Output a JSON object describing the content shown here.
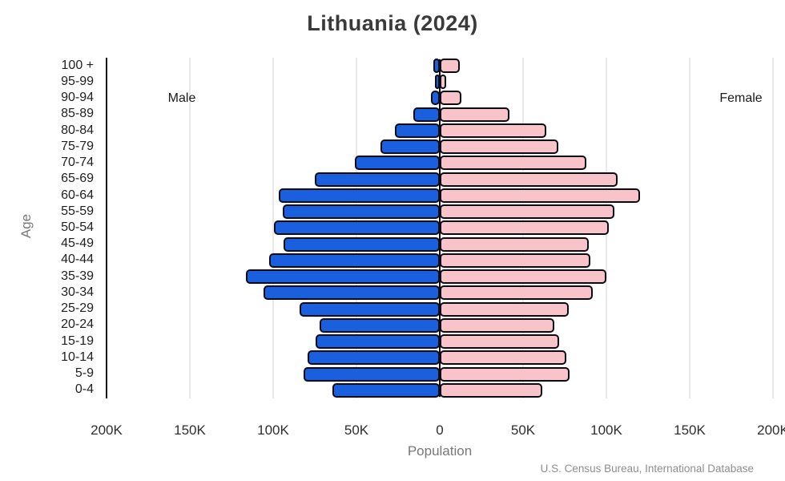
{
  "chart": {
    "title": "Lithuania (2024)",
    "male_annotation": "Male",
    "female_annotation": "Female",
    "xlabel": "Population",
    "ylabel": "Age",
    "source": "U.S. Census Bureau, International Database",
    "x_tick_labels": [
      "200K",
      "150K",
      "100K",
      "50K",
      "0",
      "50K",
      "100K",
      "150K",
      "200K"
    ],
    "colors": {
      "male_bar": "#1a5fdd",
      "female_bar": "#f8c3c9",
      "bar_outline": "#0b0b14",
      "gridline": "#e9e9e9",
      "axis_line": "#111111",
      "title_text": "#3a3a3a",
      "muted_text": "#787878",
      "source_text": "#8e8e8e"
    }
  },
  "chart_data": {
    "type": "bar",
    "subtype": "population-pyramid",
    "title": "Lithuania (2024)",
    "xlabel": "Population",
    "ylabel": "Age",
    "unit": "thousands of people",
    "xlim_each_side_thousands": [
      0,
      200
    ],
    "x_tick_step_thousands": 50,
    "grid": true,
    "legend": "Male left (blue), Female right (pink)",
    "categories_top_to_bottom": [
      "100 +",
      "95-99",
      "90-94",
      "85-89",
      "80-84",
      "75-79",
      "70-74",
      "65-69",
      "60-64",
      "55-59",
      "50-54",
      "45-49",
      "40-44",
      "35-39",
      "30-34",
      "25-29",
      "20-24",
      "15-19",
      "10-14",
      "5-9",
      "0-4"
    ],
    "series": [
      {
        "name": "Male",
        "side": "left",
        "color": "#1a5fdd",
        "values_thousands": [
          1.9,
          0.9,
          3.3,
          14.0,
          25.2,
          33.5,
          48.9,
          73.2,
          94.9,
          92.2,
          97.6,
          91.7,
          100.5,
          114.4,
          103.7,
          82.4,
          70.2,
          72.5,
          77.6,
          80.0,
          62.4
        ]
      },
      {
        "name": "Female",
        "side": "right",
        "color": "#f8c3c9",
        "values_thousands": [
          10.1,
          1.8,
          10.9,
          39.8,
          62.2,
          69.1,
          86.2,
          104.8,
          118.3,
          102.7,
          99.5,
          87.5,
          88.6,
          98.2,
          89.9,
          75.5,
          67.0,
          69.7,
          73.9,
          76.1,
          59.8
        ]
      }
    ]
  }
}
